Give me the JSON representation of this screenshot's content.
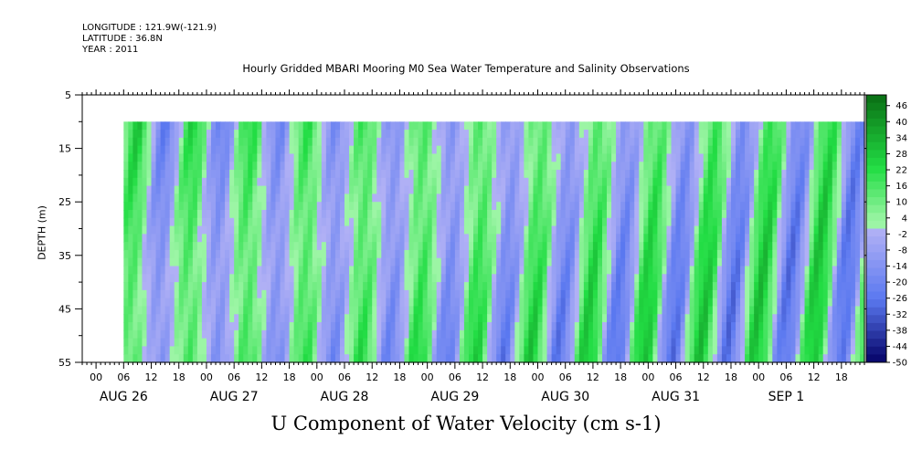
{
  "header": {
    "longitude": "LONGITUDE : 121.9W(-121.9)",
    "latitude": "LATITUDE : 36.8N",
    "year": "YEAR : 2011"
  },
  "colors": {
    "strong_positive": "#0a6e14",
    "positive": "#22dd44",
    "weak_positive": "#9cf5a5",
    "weak_negative": "#b0b0f5",
    "negative": "#5a78f0",
    "strong_negative": "#0a0a70"
  },
  "chart_data": {
    "type": "heatmap",
    "title": "Hourly Gridded MBARI Mooring M0 Sea Water Temperature and Salinity Observations",
    "subtitle": "U Component of Water Velocity (cm s-1)",
    "xlabel": "",
    "ylabel": "DEPTH (m)",
    "y_ticks": [
      5,
      15,
      25,
      35,
      45,
      55
    ],
    "y_range": [
      5,
      55
    ],
    "y_inverted": true,
    "x_range": [
      "2011-08-25 21:00",
      "2011-09-01 23:00"
    ],
    "hour_tick_labels": [
      "00",
      "06",
      "12",
      "18",
      "00",
      "06",
      "12",
      "18",
      "00",
      "06",
      "12",
      "18",
      "00",
      "06",
      "12",
      "18",
      "00",
      "06",
      "12",
      "18",
      "00",
      "06",
      "12",
      "18",
      "00",
      "06",
      "12",
      "18"
    ],
    "day_labels": [
      "AUG 26",
      "AUG 27",
      "AUG 28",
      "AUG 29",
      "AUG 30",
      "AUG 31",
      "SEP  1"
    ],
    "data_start": "2011-08-26 06:00",
    "data_end": "2011-09-01 23:00",
    "data_depth_range": [
      10,
      55
    ],
    "colorbar": {
      "labels": [
        "46",
        "40",
        "34",
        "28",
        "22",
        "16",
        "10",
        "4",
        "-2",
        "-8",
        "-14",
        "-20",
        "-26",
        "-32",
        "-38",
        "-44",
        "-50"
      ],
      "range": [
        -50,
        50
      ],
      "step": 3
    },
    "description_values": "Alternating tidal bands of positive (green) and negative (blue) U velocity, roughly -30 to 30 cm s-1"
  }
}
